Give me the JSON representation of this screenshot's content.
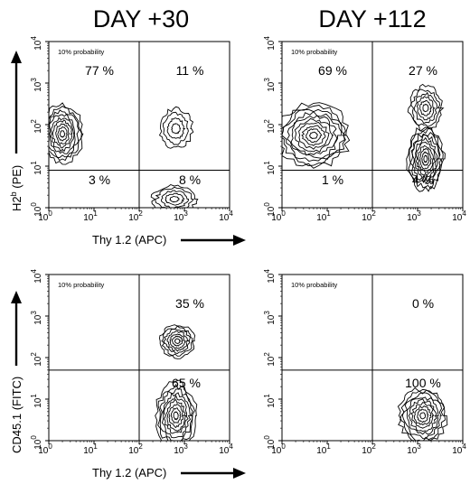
{
  "columns": [
    "DAY +30",
    "DAY +112"
  ],
  "rows": [
    {
      "ylabel": "H2b (PE)",
      "xlabel": "Thy 1.2 (APC)"
    },
    {
      "ylabel": "CD45.1 (FITC)",
      "xlabel": "Thy 1.2 (APC)"
    }
  ],
  "chart_data": [
    {
      "type": "contour",
      "column": "DAY +30",
      "ylabel": "H2b (PE)",
      "xlabel": "Thy 1.2 (APC)",
      "xscale": "log",
      "yscale": "log",
      "xlim": [
        1,
        10000
      ],
      "ylim": [
        1,
        10000
      ],
      "xticks": [
        "10^0",
        "10^1",
        "10^2",
        "10^3",
        "10^4"
      ],
      "yticks": [
        "10^0",
        "10^1",
        "10^2",
        "10^3",
        "10^4"
      ],
      "annotation": "10% probability",
      "quadrant_gate": {
        "x": 100,
        "y": 8
      },
      "quadrants": {
        "upper_left": "77 %",
        "upper_right": "11 %",
        "lower_left": "3 %",
        "lower_right": "8 %"
      },
      "populations": [
        {
          "cx": 2,
          "cy": 60,
          "sx": 2.2,
          "sy": 3.2,
          "levels": 9
        },
        {
          "cx": 650,
          "cy": 80,
          "sx": 1.8,
          "sy": 2.2,
          "levels": 4
        },
        {
          "cx": 600,
          "cy": 1.6,
          "sx": 2.4,
          "sy": 1.5,
          "levels": 5
        }
      ]
    },
    {
      "type": "contour",
      "column": "DAY +112",
      "ylabel": "H2b (PE)",
      "xlabel": "Thy 1.2 (APC)",
      "xscale": "log",
      "yscale": "log",
      "xlim": [
        1,
        10000
      ],
      "ylim": [
        1,
        10000
      ],
      "xticks": [
        "10^0",
        "10^1",
        "10^2",
        "10^3",
        "10^4"
      ],
      "yticks": [
        "10^0",
        "10^1",
        "10^2",
        "10^3",
        "10^4"
      ],
      "annotation": "10% probability",
      "quadrant_gate": {
        "x": 100,
        "y": 8
      },
      "quadrants": {
        "upper_left": "69 %",
        "upper_right": "27 %",
        "lower_left": "1 %",
        "lower_right": "4 %"
      },
      "populations": [
        {
          "cx": 5,
          "cy": 55,
          "sx": 4.0,
          "sy": 3.5,
          "levels": 10
        },
        {
          "cx": 1500,
          "cy": 15,
          "sx": 2.0,
          "sy": 3.5,
          "levels": 10
        },
        {
          "cx": 1500,
          "cy": 250,
          "sx": 1.8,
          "sy": 2.4,
          "levels": 6
        }
      ]
    },
    {
      "type": "contour",
      "column": "DAY +30",
      "ylabel": "CD45.1 (FITC)",
      "xlabel": "Thy 1.2 (APC)",
      "xscale": "log",
      "yscale": "log",
      "xlim": [
        1,
        10000
      ],
      "ylim": [
        1,
        10000
      ],
      "xticks": [
        "10^0",
        "10^1",
        "10^2",
        "10^3",
        "10^4"
      ],
      "yticks": [
        "10^0",
        "10^1",
        "10^2",
        "10^3",
        "10^4"
      ],
      "annotation": "10% probability",
      "quadrant_gate": {
        "x": 100,
        "y": 50
      },
      "quadrants": {
        "upper_left": "",
        "upper_right": "35 %",
        "lower_left": "",
        "lower_right": "65 %"
      },
      "populations": [
        {
          "cx": 700,
          "cy": 250,
          "sx": 1.9,
          "sy": 1.8,
          "levels": 7
        },
        {
          "cx": 650,
          "cy": 4,
          "sx": 2.2,
          "sy": 3.6,
          "levels": 9
        }
      ]
    },
    {
      "type": "contour",
      "column": "DAY +112",
      "ylabel": "CD45.1 (FITC)",
      "xlabel": "Thy 1.2 (APC)",
      "xscale": "log",
      "yscale": "log",
      "xlim": [
        1,
        10000
      ],
      "ylim": [
        1,
        10000
      ],
      "xticks": [
        "10^0",
        "10^1",
        "10^2",
        "10^3",
        "10^4"
      ],
      "yticks": [
        "10^0",
        "10^1",
        "10^2",
        "10^3",
        "10^4"
      ],
      "annotation": "10% probability",
      "quadrant_gate": {
        "x": 100,
        "y": 50
      },
      "quadrants": {
        "upper_left": "",
        "upper_right": "0 %",
        "lower_left": "",
        "lower_right": "100 %"
      },
      "populations": [
        {
          "cx": 1300,
          "cy": 4,
          "sx": 2.6,
          "sy": 3.0,
          "levels": 9
        }
      ]
    }
  ]
}
